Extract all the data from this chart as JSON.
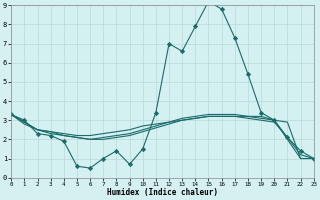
{
  "xlabel": "Humidex (Indice chaleur)",
  "xlim": [
    0,
    23
  ],
  "ylim": [
    0,
    9
  ],
  "xticks": [
    0,
    1,
    2,
    3,
    4,
    5,
    6,
    7,
    8,
    9,
    10,
    11,
    12,
    13,
    14,
    15,
    16,
    17,
    18,
    19,
    20,
    21,
    22,
    23
  ],
  "yticks": [
    0,
    1,
    2,
    3,
    4,
    5,
    6,
    7,
    8,
    9
  ],
  "bg_color": "#d4f0f0",
  "grid_color": "#b8d8d8",
  "line_color": "#1a6b6b",
  "line1_x": [
    0,
    1,
    2,
    3,
    4,
    5,
    6,
    7,
    8,
    9,
    10,
    11,
    12,
    13,
    14,
    15,
    16,
    17,
    18,
    19,
    20,
    21,
    22,
    23
  ],
  "line1_y": [
    3.3,
    3.0,
    2.3,
    2.2,
    1.9,
    0.6,
    0.5,
    1.0,
    1.4,
    0.7,
    1.5,
    3.4,
    7.0,
    6.6,
    7.9,
    9.2,
    8.8,
    7.3,
    5.4,
    3.4,
    3.0,
    2.1,
    1.4,
    1.0
  ],
  "line2_x": [
    0,
    1,
    2,
    3,
    4,
    5,
    6,
    7,
    8,
    9,
    10,
    11,
    12,
    13,
    14,
    15,
    16,
    17,
    18,
    19,
    20,
    21,
    22,
    23
  ],
  "line2_y": [
    3.3,
    2.8,
    2.5,
    2.4,
    2.3,
    2.2,
    2.2,
    2.3,
    2.4,
    2.5,
    2.7,
    2.8,
    2.9,
    3.0,
    3.1,
    3.2,
    3.2,
    3.2,
    3.2,
    3.2,
    3.0,
    2.9,
    1.0,
    1.0
  ],
  "line3_x": [
    0,
    1,
    2,
    3,
    4,
    5,
    6,
    7,
    8,
    9,
    10,
    11,
    12,
    13,
    14,
    15,
    16,
    17,
    18,
    19,
    20,
    21,
    22,
    23
  ],
  "line3_y": [
    3.3,
    2.9,
    2.5,
    2.3,
    2.2,
    2.1,
    2.0,
    2.1,
    2.2,
    2.3,
    2.5,
    2.7,
    2.9,
    3.1,
    3.2,
    3.3,
    3.3,
    3.3,
    3.2,
    3.1,
    3.0,
    2.0,
    1.0,
    1.0
  ],
  "line4_x": [
    0,
    1,
    2,
    3,
    4,
    5,
    6,
    7,
    8,
    9,
    10,
    11,
    12,
    13,
    14,
    15,
    16,
    17,
    18,
    19,
    20,
    21,
    22,
    23
  ],
  "line4_y": [
    3.3,
    2.9,
    2.5,
    2.4,
    2.2,
    2.1,
    2.0,
    2.0,
    2.1,
    2.2,
    2.4,
    2.6,
    2.8,
    3.0,
    3.1,
    3.2,
    3.2,
    3.2,
    3.1,
    3.0,
    2.9,
    2.1,
    1.2,
    1.0
  ]
}
